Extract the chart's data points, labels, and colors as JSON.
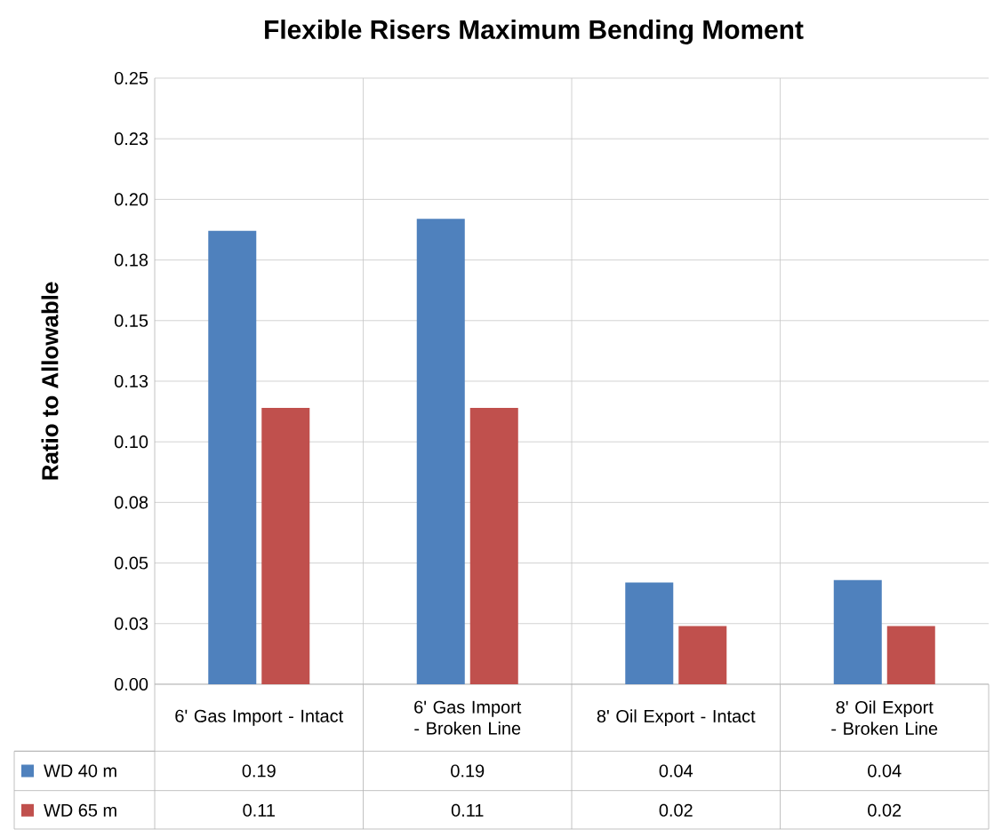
{
  "chart_data": {
    "type": "bar",
    "title": "Flexible Risers Maximum Bending Moment",
    "ylabel": "Ratio to Allowable",
    "categories": [
      "6' Gas Import - Intact",
      "6' Gas Import - Broken Line",
      "8' Oil Export - Intact",
      "8' Oil Export - Broken Line"
    ],
    "series": [
      {
        "name": "WD 40 m",
        "color": "#4f81bd",
        "values": [
          0.187,
          0.192,
          0.042,
          0.043
        ],
        "value_labels": [
          "0.19",
          "0.19",
          "0.04",
          "0.04"
        ]
      },
      {
        "name": "WD 65 m",
        "color": "#c0504d",
        "values": [
          0.114,
          0.114,
          0.024,
          0.024
        ],
        "value_labels": [
          "0.11",
          "0.11",
          "0.02",
          "0.02"
        ]
      }
    ],
    "ylim": [
      0,
      0.25
    ],
    "yticks": [
      {
        "value": 0,
        "label": "0.00"
      },
      {
        "value": 0.025,
        "label": "0.03"
      },
      {
        "value": 0.05,
        "label": "0.05"
      },
      {
        "value": 0.075,
        "label": "0.08"
      },
      {
        "value": 0.1,
        "label": "0.10"
      },
      {
        "value": 0.125,
        "label": "0.13"
      },
      {
        "value": 0.15,
        "label": "0.15"
      },
      {
        "value": 0.175,
        "label": "0.18"
      },
      {
        "value": 0.2,
        "label": "0.20"
      },
      {
        "value": 0.225,
        "label": "0.23"
      },
      {
        "value": 0.25,
        "label": "0.25"
      }
    ],
    "grid": true,
    "legend": "bottom"
  }
}
